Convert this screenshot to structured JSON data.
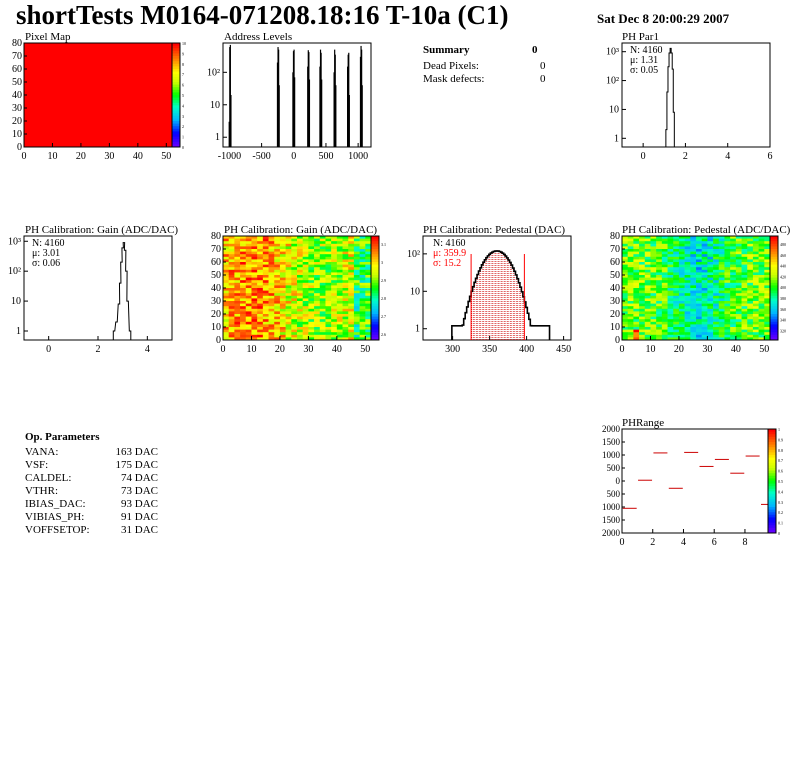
{
  "page": {
    "title": "shortTests M0164-071208.18:16 T-10a (C1)",
    "date": "Sat Dec  8 20:00:29 2007"
  },
  "summary": {
    "title": "Summary",
    "value": "0",
    "rows": [
      {
        "label": "Dead Pixels:",
        "value": "0"
      },
      {
        "label": "Mask defects:",
        "value": "0"
      }
    ]
  },
  "op_params": {
    "title": "Op. Parameters",
    "rows": [
      {
        "label": "VANA:",
        "value": "163 DAC"
      },
      {
        "label": "VSF:",
        "value": "175 DAC"
      },
      {
        "label": "CALDEL:",
        "value": "74 DAC"
      },
      {
        "label": "VTHR:",
        "value": "73 DAC"
      },
      {
        "label": "IBIAS_DAC:",
        "value": "93 DAC"
      },
      {
        "label": "VIBIAS_PH:",
        "value": "91 DAC"
      },
      {
        "label": "VOFFSETOP:",
        "value": "31 DAC"
      }
    ]
  },
  "colors": {
    "line": "#000000",
    "red": "#ff0000",
    "darkred": "#cc0000"
  },
  "chart_data": [
    {
      "id": "pixelmap",
      "type": "heatmap",
      "title": "Pixel Map",
      "x_ticks": [
        "0",
        "10",
        "20",
        "30",
        "40",
        "50"
      ],
      "y_ticks": [
        "0",
        "10",
        "20",
        "30",
        "40",
        "50",
        "60",
        "70",
        "80"
      ],
      "xlim": [
        0,
        52
      ],
      "ylim": [
        0,
        80
      ],
      "uniform_value": 10,
      "z_range": [
        0,
        10
      ],
      "z_ticks": [
        "10",
        "9",
        "8",
        "7",
        "6",
        "5",
        "4",
        "3",
        "2",
        "1",
        "0"
      ]
    },
    {
      "id": "address",
      "type": "bar",
      "title": "Address Levels",
      "log_y": true,
      "xlim": [
        -1100,
        1200
      ],
      "x_ticks": [
        "-1000",
        "-500",
        "0",
        "500",
        "1000"
      ],
      "y_ticks": [
        "1",
        "10",
        "10²"
      ],
      "peaks": [
        {
          "x": -990,
          "counts": [
            3,
            600,
            700,
            20
          ]
        },
        {
          "x": -240,
          "counts": [
            200,
            600,
            500,
            40
          ]
        },
        {
          "x": 0,
          "counts": [
            100,
            450,
            500,
            70
          ]
        },
        {
          "x": 230,
          "counts": [
            150,
            480,
            420,
            60
          ]
        },
        {
          "x": 420,
          "counts": [
            150,
            500,
            400,
            60
          ]
        },
        {
          "x": 640,
          "counts": [
            100,
            500,
            350,
            40
          ]
        },
        {
          "x": 850,
          "counts": [
            150,
            350,
            400,
            20
          ]
        },
        {
          "x": 1050,
          "counts": [
            300,
            650,
            500,
            40
          ]
        }
      ]
    },
    {
      "id": "phpar1",
      "type": "bar",
      "title": "PH Par1",
      "log_y": true,
      "xlim": [
        -1,
        6
      ],
      "x_ticks": [
        "0",
        "2",
        "4",
        "6"
      ],
      "y_ticks": [
        "1",
        "10",
        "10²",
        "10³"
      ],
      "stats": [
        "N: 4160",
        "μ: 1.31",
        "σ: 0.05"
      ],
      "x": [
        1.1,
        1.15,
        1.2,
        1.25,
        1.3,
        1.35,
        1.4,
        1.45
      ],
      "values": [
        2,
        40,
        300,
        900,
        1300,
        900,
        250,
        8
      ]
    },
    {
      "id": "gain1d",
      "type": "bar",
      "title": "PH Calibration: Gain (ADC/DAC)",
      "log_y": true,
      "xlim": [
        -1,
        5
      ],
      "x_ticks": [
        "0",
        "2",
        "4"
      ],
      "y_ticks": [
        "1",
        "10",
        "10²",
        "10³"
      ],
      "stats": [
        "N: 4160",
        "μ: 3.01",
        "σ: 0.06"
      ],
      "x": [
        2.65,
        2.75,
        2.85,
        2.9,
        2.95,
        3.0,
        3.05,
        3.1,
        3.15,
        3.2,
        3.3
      ],
      "values": [
        1,
        2,
        8,
        40,
        200,
        600,
        900,
        500,
        100,
        10,
        1
      ]
    },
    {
      "id": "gainmap",
      "type": "heatmap",
      "title": "PH Calibration: Gain (ADC/DAC)",
      "xlim": [
        0,
        52
      ],
      "ylim": [
        0,
        80
      ],
      "x_ticks": [
        "0",
        "10",
        "20",
        "30",
        "40",
        "50"
      ],
      "y_ticks": [
        "0",
        "10",
        "20",
        "30",
        "40",
        "50",
        "60",
        "70",
        "80"
      ],
      "z_ticks": [
        "3.1",
        "3",
        "2.9",
        "2.8",
        "2.7",
        "2.6"
      ]
    },
    {
      "id": "pedestal1d",
      "type": "bar",
      "title": "PH Calibration: Pedestal (DAC)",
      "log_y": true,
      "xlim": [
        260,
        460
      ],
      "x_ticks": [
        "300",
        "350",
        "400",
        "450"
      ],
      "y_ticks": [
        "1",
        "10",
        "10²"
      ],
      "stats": [
        "N: 4160",
        "μ: 359.9",
        "σ: 15.2"
      ],
      "mean": 359.9,
      "sigma": 15.2,
      "cut_lo": 325,
      "cut_hi": 397
    },
    {
      "id": "pedmap",
      "type": "heatmap",
      "title": "PH Calibration: Pedestal (ADC/DAC)",
      "xlim": [
        0,
        52
      ],
      "ylim": [
        0,
        80
      ],
      "x_ticks": [
        "0",
        "10",
        "20",
        "30",
        "40",
        "50"
      ],
      "y_ticks": [
        "0",
        "10",
        "20",
        "30",
        "40",
        "50",
        "60",
        "70",
        "80"
      ],
      "z_ticks": [
        "480",
        "460",
        "440",
        "420",
        "400",
        "380",
        "360",
        "340",
        "320"
      ]
    },
    {
      "id": "phrange",
      "type": "scatter",
      "title": "PHRange",
      "xlim": [
        0,
        9.5
      ],
      "ylim": [
        -2000,
        2000
      ],
      "x_ticks": [
        "0",
        "2",
        "4",
        "6",
        "8"
      ],
      "y_ticks": [
        "2000",
        "1500",
        "1000",
        "500",
        "0",
        "-500",
        "-1000",
        "-1500",
        "-2000"
      ],
      "y_tick_labels": [
        "2000",
        "1500",
        "1000",
        "500",
        "0",
        "500",
        "1000",
        "1500",
        "2000"
      ],
      "z_ticks": [
        "1",
        "0.9",
        "0.8",
        "0.7",
        "0.6",
        "0.5",
        "0.4",
        "0.3",
        "0.2",
        "0.1",
        "0"
      ],
      "x": [
        0.5,
        1.5,
        2.5,
        3.5,
        4.5,
        5.5,
        6.5,
        7.5,
        8.5,
        9.5
      ],
      "y": [
        -1050,
        30,
        1080,
        -280,
        1100,
        560,
        830,
        300,
        960,
        -900
      ]
    }
  ]
}
